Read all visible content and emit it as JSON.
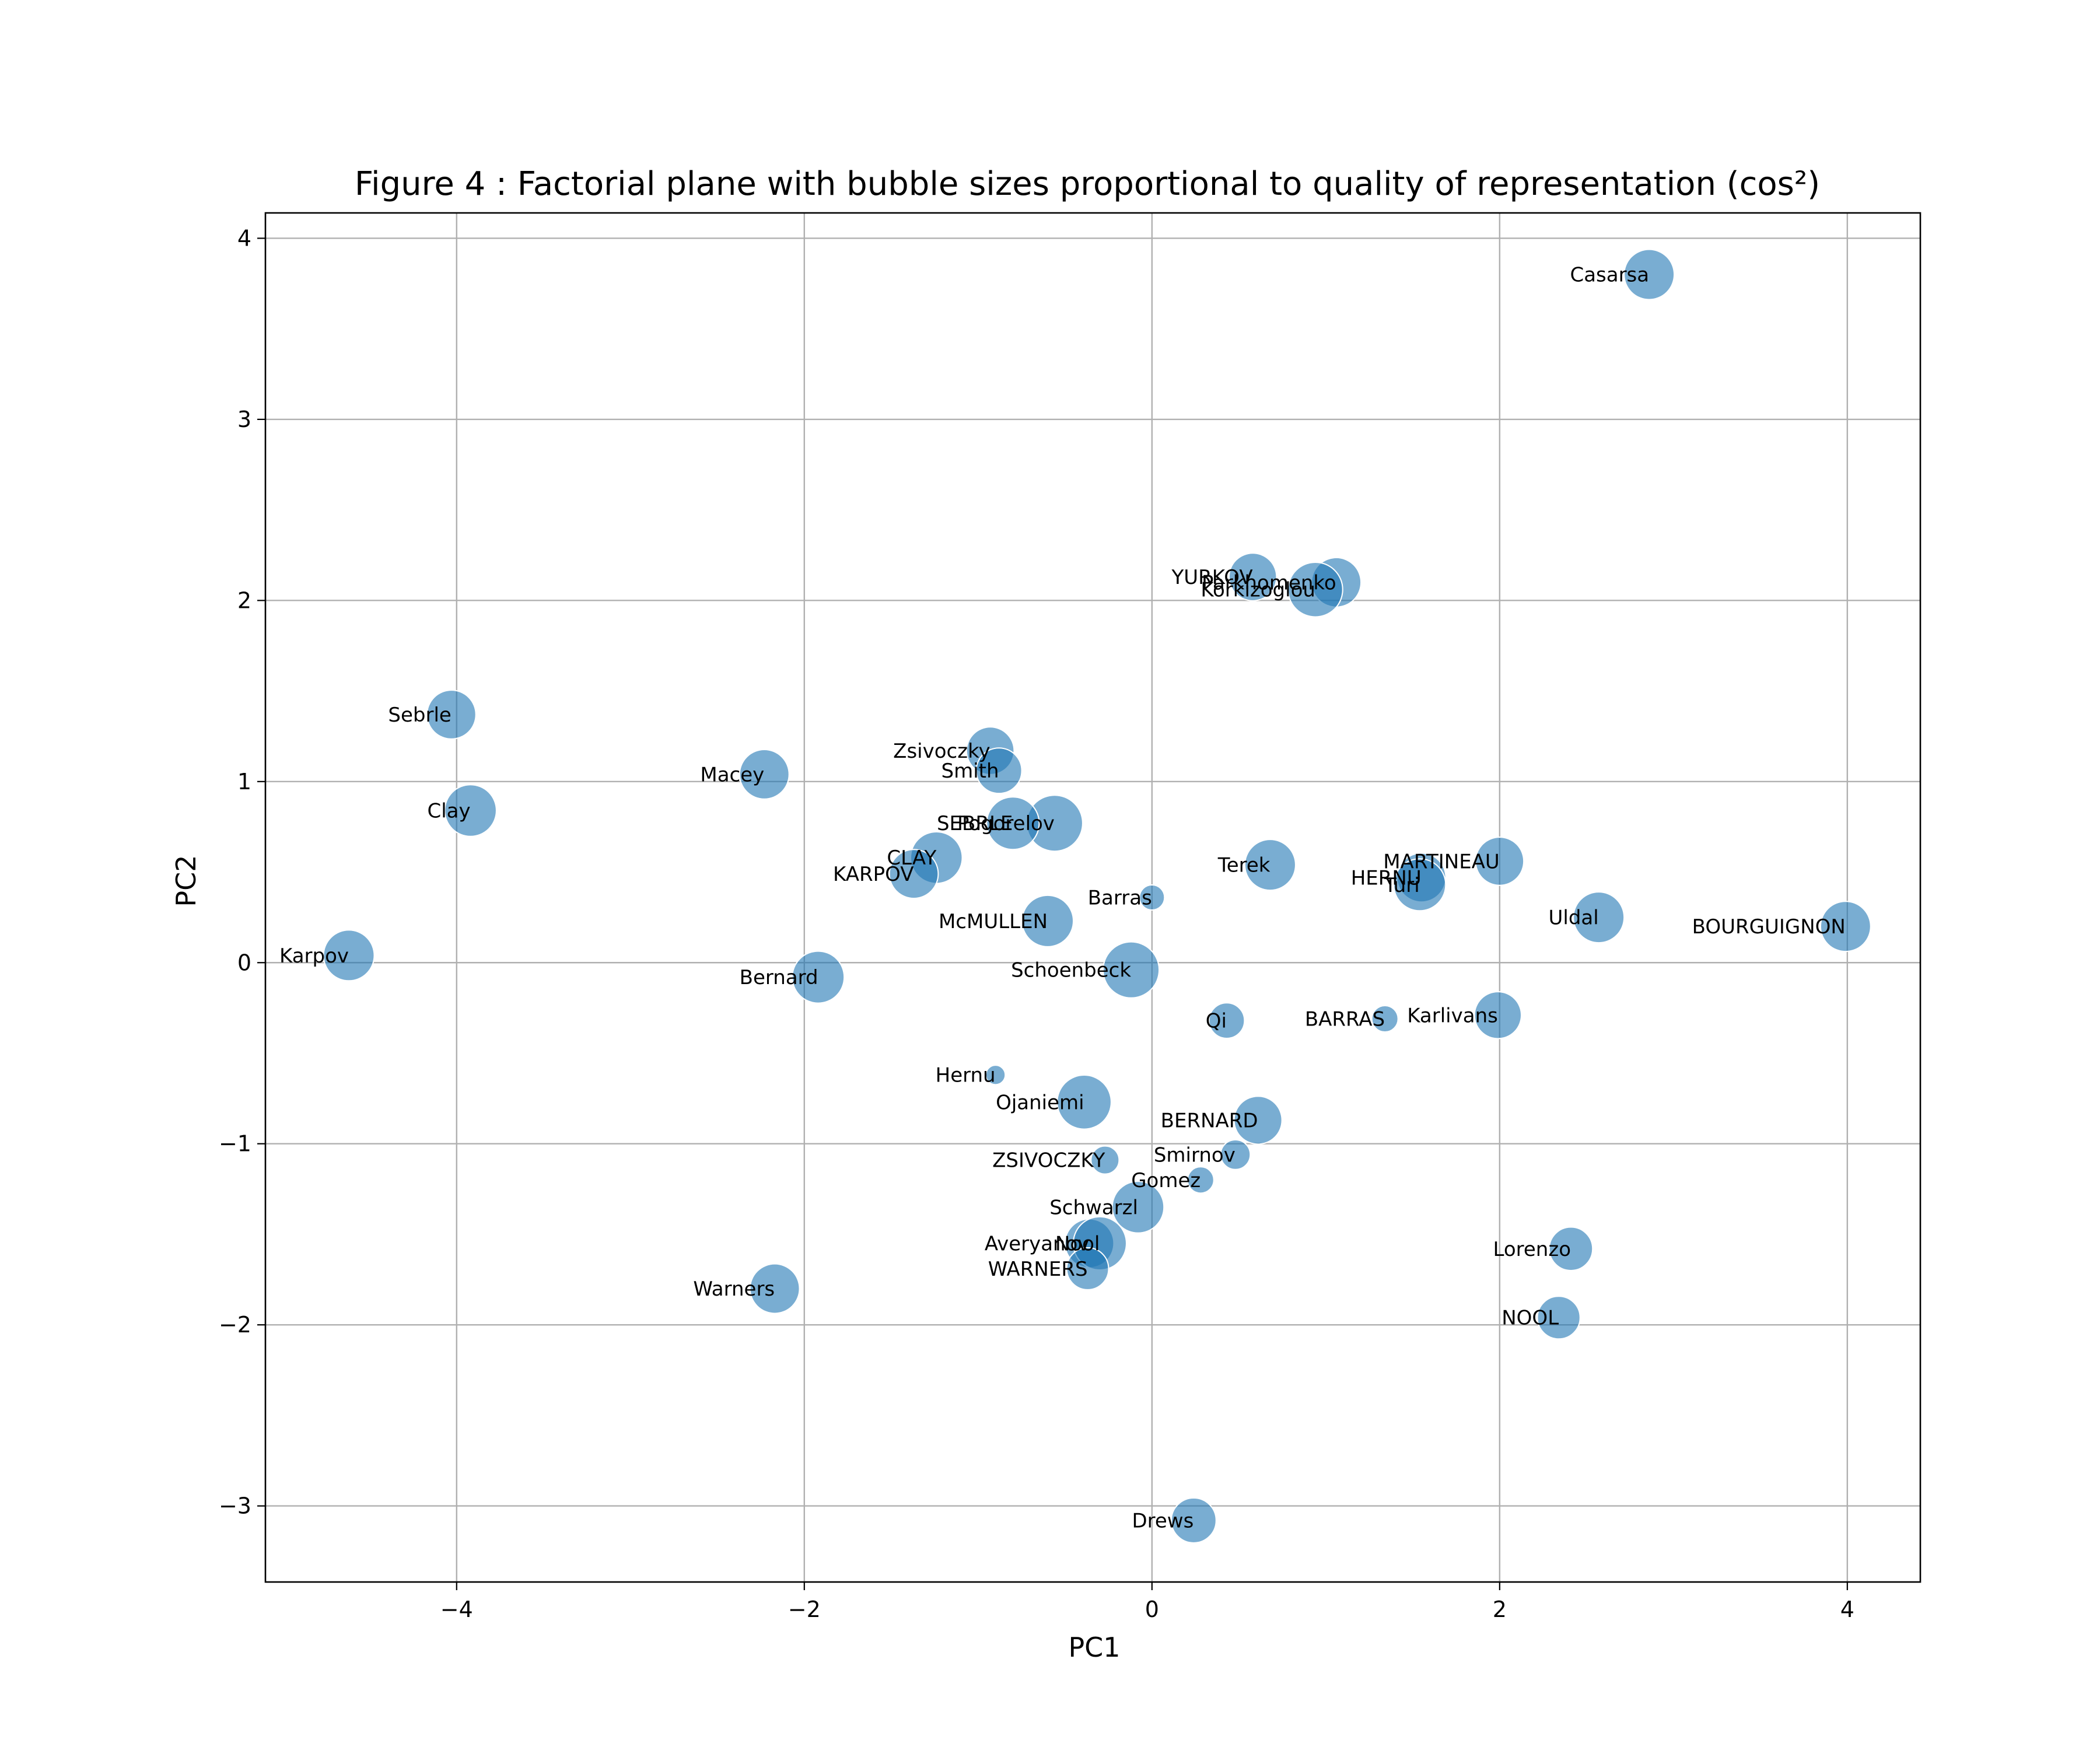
{
  "chart_data": {
    "type": "scatter",
    "title": "Figure 4 : Factorial plane with bubble sizes proportional to quality of representation (cos²)",
    "xlabel": "PC1",
    "ylabel": "PC2",
    "xlim": [
      -5.1,
      4.42
    ],
    "ylim": [
      -3.42,
      4.14
    ],
    "xticks": [
      -4,
      -2,
      0,
      2,
      4
    ],
    "xtick_labels": [
      "−4",
      "−2",
      "0",
      "2",
      "4"
    ],
    "yticks": [
      -3,
      -2,
      -1,
      0,
      1,
      2,
      3,
      4
    ],
    "ytick_labels": [
      "−3",
      "−2",
      "−1",
      "0",
      "1",
      "2",
      "3",
      "4"
    ],
    "grid": true,
    "color": "#1f77b4",
    "opacity": 0.6,
    "size_encoding": "cos² (quality of representation)",
    "points": [
      {
        "label": "Casarsa",
        "x": 2.86,
        "y": 3.8,
        "cos2": 0.8
      },
      {
        "label": "YURKOV",
        "x": 0.58,
        "y": 2.13,
        "cos2": 0.72
      },
      {
        "label": "Parkhomenko",
        "x": 1.06,
        "y": 2.1,
        "cos2": 0.78
      },
      {
        "label": "Korkizoglou",
        "x": 0.94,
        "y": 2.06,
        "cos2": 0.95
      },
      {
        "label": "Sebrle",
        "x": -4.03,
        "y": 1.37,
        "cos2": 0.76
      },
      {
        "label": "Zsivoczky",
        "x": -0.93,
        "y": 1.17,
        "cos2": 0.72
      },
      {
        "label": "Smith",
        "x": -0.88,
        "y": 1.06,
        "cos2": 0.66
      },
      {
        "label": "Macey",
        "x": -2.23,
        "y": 1.04,
        "cos2": 0.78
      },
      {
        "label": "Clay",
        "x": -3.92,
        "y": 0.84,
        "cos2": 0.85
      },
      {
        "label": "Pogorelov",
        "x": -0.56,
        "y": 0.77,
        "cos2": 1.0
      },
      {
        "label": "SEBRLE",
        "x": -0.8,
        "y": 0.77,
        "cos2": 0.88
      },
      {
        "label": "CLAY",
        "x": -1.24,
        "y": 0.58,
        "cos2": 0.85
      },
      {
        "label": "Terek",
        "x": 0.68,
        "y": 0.54,
        "cos2": 0.82
      },
      {
        "label": "MARTINEAU",
        "x": 2.0,
        "y": 0.56,
        "cos2": 0.74
      },
      {
        "label": "HERNU",
        "x": 1.55,
        "y": 0.47,
        "cos2": 0.76
      },
      {
        "label": "Turi",
        "x": 1.54,
        "y": 0.43,
        "cos2": 0.86
      },
      {
        "label": "KARPOV",
        "x": -1.37,
        "y": 0.49,
        "cos2": 0.76
      },
      {
        "label": "Barras",
        "x": 0.0,
        "y": 0.36,
        "cos2": 0.2
      },
      {
        "label": "Uldal",
        "x": 2.57,
        "y": 0.25,
        "cos2": 0.82
      },
      {
        "label": "McMULLEN",
        "x": -0.6,
        "y": 0.23,
        "cos2": 0.84
      },
      {
        "label": "BOURGUIGNON",
        "x": 3.99,
        "y": 0.2,
        "cos2": 0.8
      },
      {
        "label": "Karpov",
        "x": -4.62,
        "y": 0.04,
        "cos2": 0.82
      },
      {
        "label": "Schoenbeck",
        "x": -0.12,
        "y": -0.04,
        "cos2": 1.0
      },
      {
        "label": "Bernard",
        "x": -1.92,
        "y": -0.08,
        "cos2": 0.86
      },
      {
        "label": "Qi",
        "x": 0.43,
        "y": -0.32,
        "cos2": 0.4
      },
      {
        "label": "BARRAS",
        "x": 1.34,
        "y": -0.31,
        "cos2": 0.22
      },
      {
        "label": "Karlivans",
        "x": 1.99,
        "y": -0.29,
        "cos2": 0.7
      },
      {
        "label": "Hernu",
        "x": -0.9,
        "y": -0.62,
        "cos2": 0.12
      },
      {
        "label": "Ojaniemi",
        "x": -0.39,
        "y": -0.77,
        "cos2": 0.93
      },
      {
        "label": "BERNARD",
        "x": 0.61,
        "y": -0.87,
        "cos2": 0.73
      },
      {
        "label": "Smirnov",
        "x": 0.48,
        "y": -1.06,
        "cos2": 0.28
      },
      {
        "label": "ZSIVOCZKY",
        "x": -0.27,
        "y": -1.09,
        "cos2": 0.25
      },
      {
        "label": "Gomez",
        "x": 0.28,
        "y": -1.2,
        "cos2": 0.22
      },
      {
        "label": "Schwarzl",
        "x": -0.08,
        "y": -1.35,
        "cos2": 0.85
      },
      {
        "label": "Averyanov",
        "x": -0.36,
        "y": -1.55,
        "cos2": 0.76
      },
      {
        "label": "Nool",
        "x": -0.3,
        "y": -1.55,
        "cos2": 0.9
      },
      {
        "label": "WARNERS",
        "x": -0.37,
        "y": -1.69,
        "cos2": 0.56
      },
      {
        "label": "Lorenzo",
        "x": 2.41,
        "y": -1.58,
        "cos2": 0.6
      },
      {
        "label": "Warners",
        "x": -2.17,
        "y": -1.8,
        "cos2": 0.78
      },
      {
        "label": "NOOL",
        "x": 2.34,
        "y": -1.96,
        "cos2": 0.58
      },
      {
        "label": "Drews",
        "x": 0.24,
        "y": -3.08,
        "cos2": 0.64
      }
    ]
  }
}
